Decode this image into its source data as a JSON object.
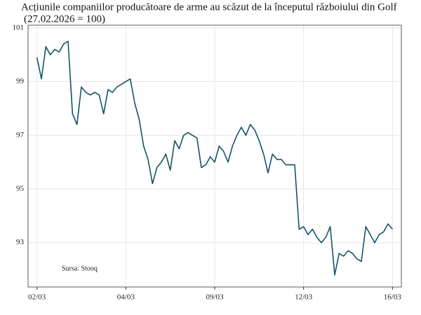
{
  "chart_data": {
    "type": "line",
    "title": "Acțiunile companiilor producătoare de arme au scăzut de la începutul războiului din Golf",
    "subtitle": "(27.02.2026 = 100)",
    "annotation": "Sursa: Stooq",
    "color": "#14536b",
    "grid": true,
    "x": [
      0,
      1,
      2,
      3,
      4,
      5,
      6,
      7,
      8,
      9,
      10,
      11,
      12,
      13,
      14,
      15,
      16,
      17,
      18,
      19,
      20,
      21,
      22,
      23,
      24,
      25,
      26,
      27,
      28,
      29,
      30,
      31,
      32,
      33,
      34,
      35,
      36,
      37,
      38,
      39,
      40,
      41,
      42,
      43,
      44,
      45,
      46,
      47,
      48,
      49,
      50,
      51,
      52,
      53,
      54,
      55,
      56,
      57,
      58,
      59,
      60,
      61,
      62,
      63,
      64,
      65,
      66,
      67,
      68,
      69,
      70,
      71,
      72,
      73,
      74,
      75,
      76,
      77,
      78,
      79,
      80
    ],
    "values": [
      99.9,
      99.1,
      100.3,
      100.0,
      100.2,
      100.1,
      100.4,
      100.5,
      97.8,
      97.4,
      98.8,
      98.6,
      98.5,
      98.6,
      98.5,
      97.8,
      98.7,
      98.6,
      98.8,
      98.9,
      99.0,
      99.1,
      98.2,
      97.6,
      96.6,
      96.1,
      95.2,
      95.8,
      96.0,
      96.3,
      95.7,
      96.8,
      96.5,
      97.0,
      97.1,
      97.0,
      96.9,
      95.8,
      95.9,
      96.2,
      96.0,
      96.6,
      96.4,
      96.0,
      96.6,
      97.0,
      97.3,
      97.0,
      97.4,
      97.2,
      96.8,
      96.3,
      95.6,
      96.3,
      96.1,
      96.1,
      95.9,
      95.9,
      95.9,
      93.5,
      93.6,
      93.3,
      93.5,
      93.2,
      93.0,
      93.2,
      93.6,
      91.8,
      92.6,
      92.5,
      92.7,
      92.6,
      92.4,
      92.3,
      93.6,
      93.3,
      93.0,
      93.3,
      93.4,
      93.7,
      93.5
    ],
    "xlim": [
      -2,
      82
    ],
    "xticks": [
      {
        "value": 0,
        "label": "02/03"
      },
      {
        "value": 20,
        "label": "04/03"
      },
      {
        "value": 40,
        "label": "09/03"
      },
      {
        "value": 60,
        "label": "12/03"
      },
      {
        "value": 80,
        "label": "16/03"
      }
    ],
    "ylim": [
      91.35,
      101.1
    ],
    "yticks": [
      93,
      95,
      97,
      99,
      101
    ]
  }
}
